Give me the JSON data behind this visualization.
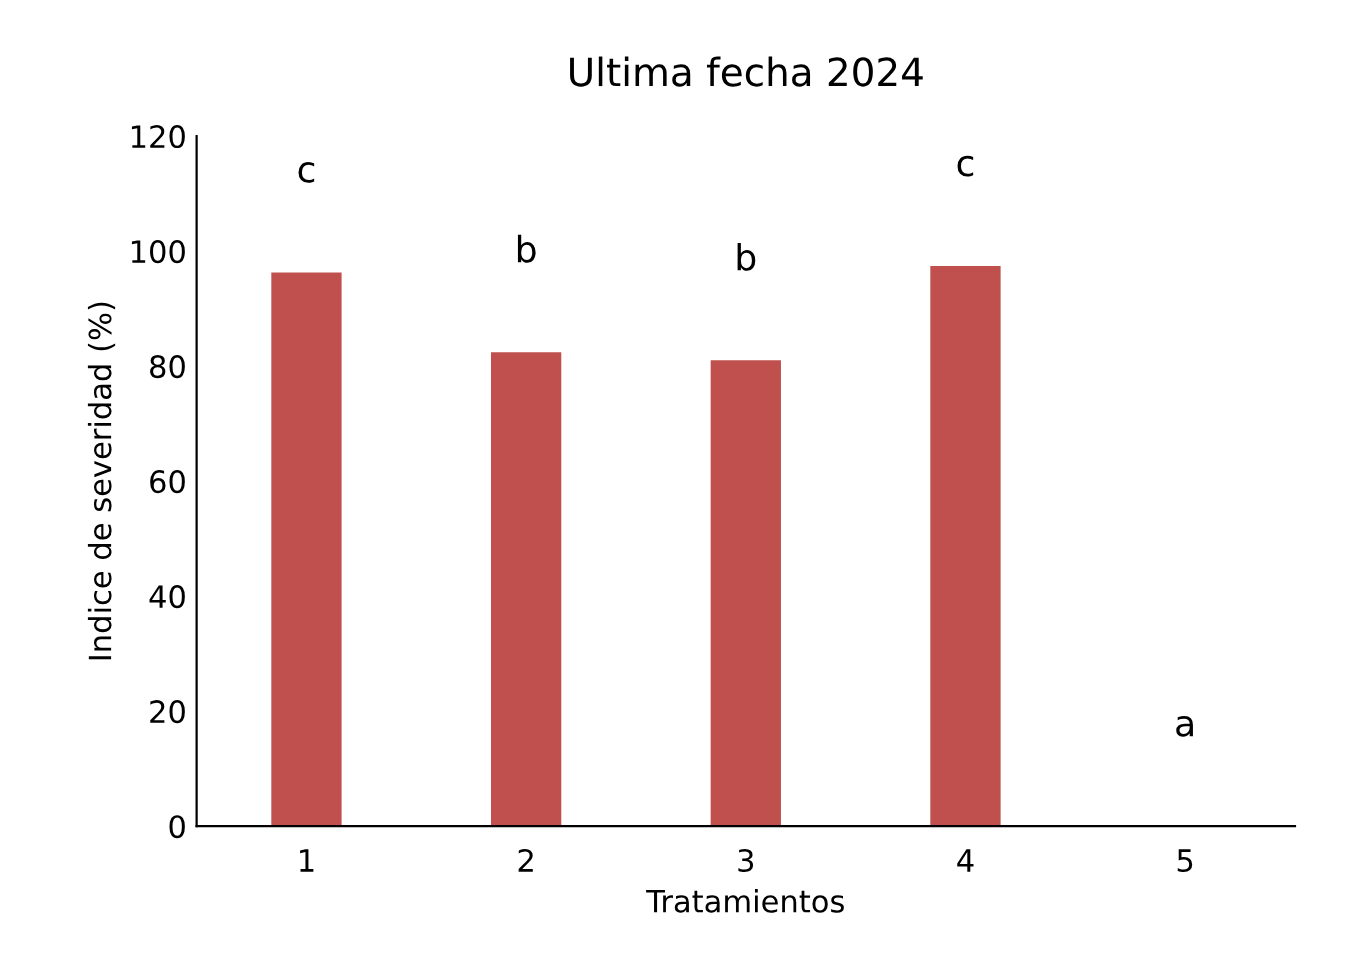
{
  "chart_data": {
    "type": "bar",
    "title": "Ultima fecha 2024",
    "xlabel": "Tratamientos",
    "ylabel": "Indice de severidad (%)",
    "categories": [
      "1",
      "2",
      "3",
      "4",
      "5"
    ],
    "values": [
      96.3,
      82.4,
      81.0,
      97.4,
      0
    ],
    "color": "#c0504d",
    "ylim": [
      0,
      120
    ],
    "yticks": [
      0,
      20,
      40,
      60,
      80,
      100,
      120
    ],
    "grid": false,
    "legend": false,
    "annotations": [
      "c",
      "b",
      "b",
      "c",
      "a"
    ]
  }
}
